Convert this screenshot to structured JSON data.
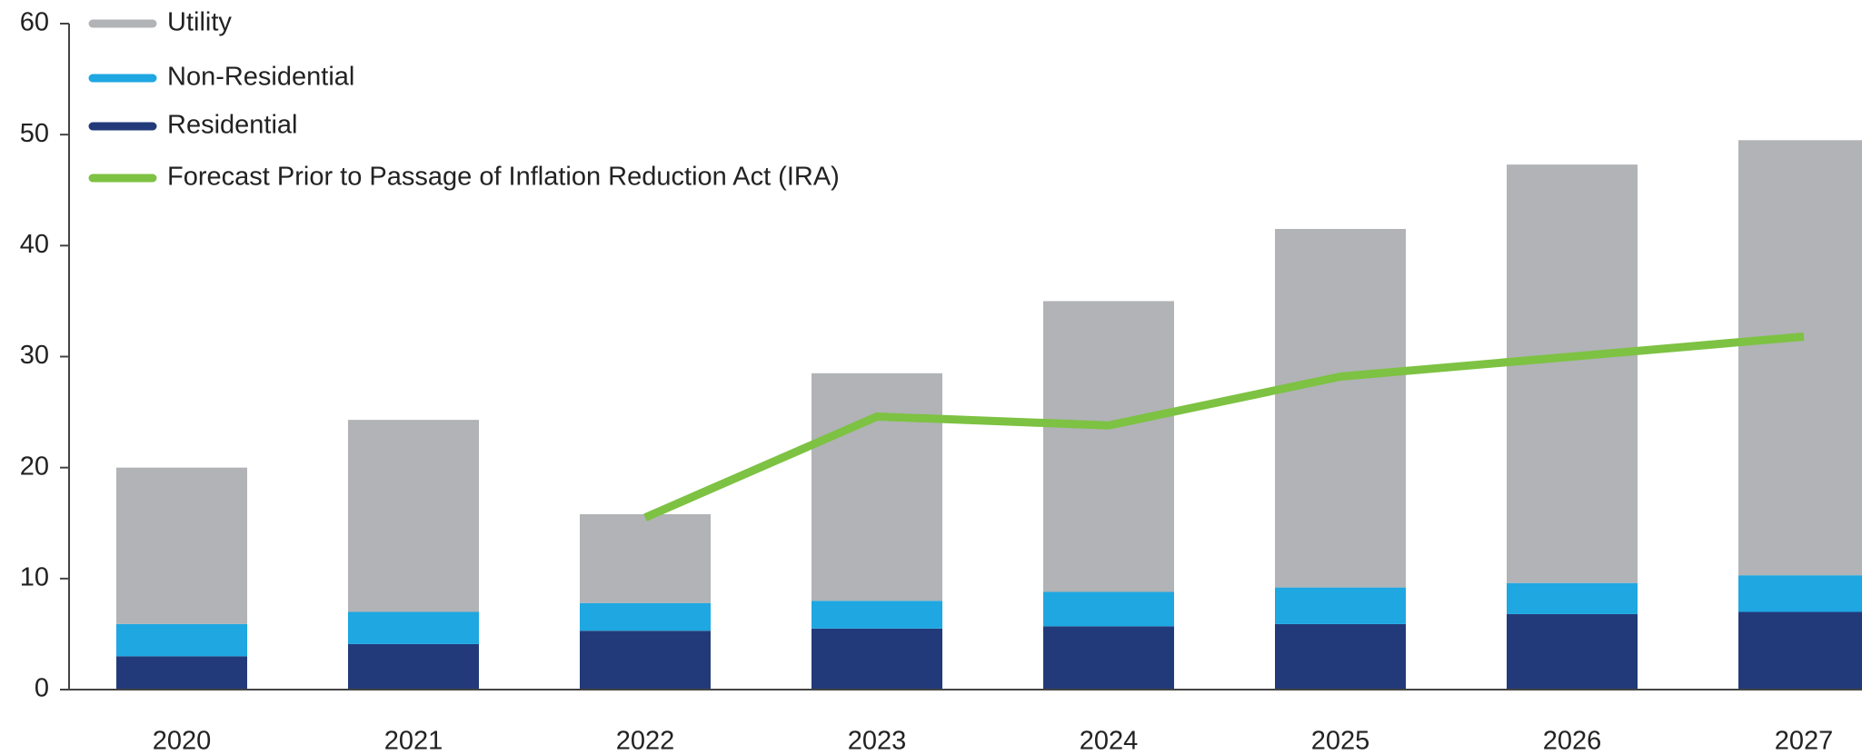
{
  "chart_data": {
    "type": "bar",
    "stacked": true,
    "categories": [
      "2020",
      "2021",
      "2022",
      "2023",
      "2024",
      "2025",
      "2026",
      "2027"
    ],
    "series": [
      {
        "name": "Utility",
        "color": "#b1b3b6",
        "values": [
          14.1,
          17.3,
          8.0,
          20.5,
          26.2,
          32.3,
          37.7,
          39.2
        ]
      },
      {
        "name": "Non-Residential",
        "color": "#1ea7e1",
        "values": [
          2.9,
          2.9,
          2.5,
          2.5,
          3.1,
          3.3,
          2.8,
          3.3
        ]
      },
      {
        "name": "Residential",
        "color": "#233a7a",
        "values": [
          3.0,
          4.1,
          5.3,
          5.5,
          5.7,
          5.9,
          6.8,
          7.0
        ]
      },
      {
        "name": "Forecast Prior to Passage of Inflation Reduction Act (IRA)",
        "color": "#7dc242",
        "type": "line",
        "values": [
          null,
          null,
          15.5,
          24.6,
          23.8,
          28.2,
          30.0,
          31.8
        ]
      }
    ],
    "ylim": [
      0,
      60
    ],
    "yticks": [
      0,
      10,
      20,
      30,
      40,
      50,
      60
    ],
    "legend": "top-left"
  }
}
